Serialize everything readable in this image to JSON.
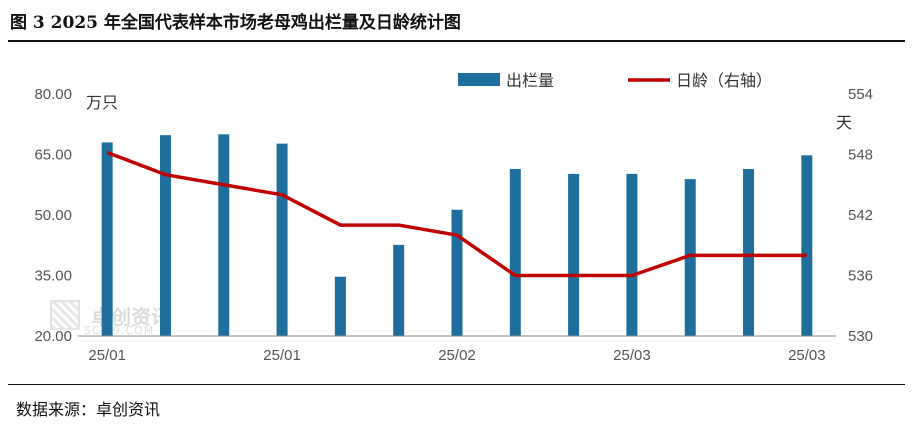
{
  "header": {
    "title": "图 3 2025 年全国代表样本市场老母鸡出栏量及日龄统计图"
  },
  "footer": {
    "source": "数据来源：卓创资讯"
  },
  "watermark": {
    "text": "卓创资讯",
    "sub": "SCI99.COM"
  },
  "colors": {
    "bar": "#1f6f9e",
    "line": "#c00000",
    "axis": "#555555"
  },
  "chart_data": {
    "type": "bar",
    "categories": [
      "25/01",
      "25/01",
      "25/01",
      "25/01",
      "25/01",
      "25/02",
      "25/02",
      "25/02",
      "25/03",
      "25/03",
      "25/03",
      "25/03",
      "25/03"
    ],
    "x_tick_labels": [
      "25/01",
      "25/01",
      "25/02",
      "25/03",
      "25/03"
    ],
    "left_unit": "万只",
    "right_unit": "天",
    "ylim": [
      20,
      80
    ],
    "y2lim": [
      530,
      554
    ],
    "y_ticks": [
      "80.00",
      "65.00",
      "50.00",
      "35.00",
      "20.00"
    ],
    "y2_ticks": [
      "554",
      "548",
      "542",
      "536",
      "530"
    ],
    "legend_position": "top-center",
    "series": [
      {
        "name": "出栏量",
        "type": "bar",
        "axis": "left",
        "values": [
          68.0,
          69.8,
          70.0,
          67.7,
          34.7,
          42.6,
          51.3,
          61.4,
          60.2,
          60.2,
          58.9,
          61.4,
          64.8
        ]
      },
      {
        "name": "日龄（右轴）",
        "type": "line",
        "axis": "right",
        "values": [
          548.2,
          546.0,
          545.0,
          544.0,
          541.0,
          541.0,
          540.0,
          536.0,
          536.0,
          536.0,
          538.0,
          538.0,
          538.0
        ]
      }
    ]
  }
}
